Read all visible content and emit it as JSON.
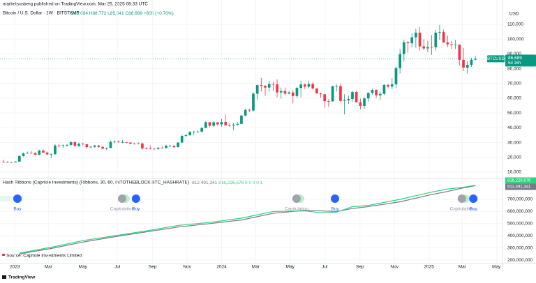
{
  "header": {
    "published": "marketsusberg published on TradingView.com, Mar 25, 2025 08:33 UTC",
    "symbol": "Bitcoin / U.S. Dollar · 1W · BITSTAMP",
    "ohlc": [
      "O86,084",
      "H88,772",
      "L85,541",
      "C86,689",
      "+605 (+0.70%)"
    ],
    "indicator": "Hash Ribbons (Capriole Investments) (Ribbons, 30, 60, INTOTHEBLOCK:BTC_HASHRATE)",
    "indicator_values": [
      "812,491,341",
      "816,226,576",
      "0 0 0 0 1"
    ],
    "source": "Source: Capriole Investments Limited",
    "footer": "TradingView"
  },
  "chart_data": [
    {
      "type": "candlestick",
      "currency": "USD",
      "symbol_tag": "BTCUSD",
      "last_label": "86,689",
      "countdown": "5d 16h",
      "up_color": "#089981",
      "down_color": "#f23645",
      "xlim": [
        -0.9,
        125.5
      ],
      "xticks": [
        {
          "value": 2.86,
          "label": "2023"
        },
        {
          "value": 11.3,
          "label": "Mar"
        },
        {
          "value": 20,
          "label": "May"
        },
        {
          "value": 28.7,
          "label": "Jul"
        },
        {
          "value": 37.6,
          "label": "Sep"
        },
        {
          "value": 46.3,
          "label": "Nov"
        },
        {
          "value": 55,
          "label": "2024"
        },
        {
          "value": 63.6,
          "label": "Mar"
        },
        {
          "value": 72.3,
          "label": "May"
        },
        {
          "value": 81,
          "label": "Jul"
        },
        {
          "value": 89.9,
          "label": "Sep"
        },
        {
          "value": 98.6,
          "label": "Nov"
        },
        {
          "value": 107.3,
          "label": "2025"
        },
        {
          "value": 115.7,
          "label": "Mar"
        },
        {
          "value": 124.3,
          "label": "May"
        }
      ],
      "ylim": [
        6200,
        119400
      ],
      "yticks": [
        {
          "value": 10000,
          "label": "10,000"
        },
        {
          "value": 20000,
          "label": "20,000"
        },
        {
          "value": 30000,
          "label": "30,000"
        },
        {
          "value": 40000,
          "label": "40,000"
        },
        {
          "value": 50000,
          "label": "50,000"
        },
        {
          "value": 60000,
          "label": "60,000"
        },
        {
          "value": 70000,
          "label": "70,000"
        },
        {
          "value": 80000,
          "label": "80,000"
        },
        {
          "value": 90000,
          "label": "90,000"
        },
        {
          "value": 100000,
          "label": "100,000"
        },
        {
          "value": 110000,
          "label": "110,000"
        }
      ],
      "open": [
        17100,
        16800,
        16850,
        16600,
        17100,
        20900,
        22700,
        23000,
        22900,
        21800,
        24600,
        23200,
        22000,
        22100,
        28000,
        27900,
        28200,
        28300,
        30300,
        27800,
        29200,
        28900,
        26900,
        27100,
        28000,
        27100,
        25900,
        26300,
        30500,
        30600,
        30200,
        30300,
        30000,
        29300,
        29100,
        29400,
        26100,
        26000,
        25900,
        25800,
        26500,
        26300,
        27900,
        27900,
        26900,
        30000,
        34500,
        35000,
        37100,
        37400,
        37400,
        39900,
        43800,
        41400,
        43700,
        42300,
        43900,
        41700,
        41600,
        42100,
        42600,
        48300,
        52100,
        51700,
        63100,
        68900,
        68400,
        67200,
        69600,
        69400,
        63900,
        64900,
        63100,
        63900,
        61500,
        67000,
        69300,
        67800,
        69600,
        66600,
        63200,
        62700,
        58000,
        57900,
        68200,
        68200,
        58200,
        58700,
        59500,
        64200,
        57300,
        54800,
        59900,
        63600,
        65600,
        62000,
        63000,
        69000,
        67900,
        69400,
        80400,
        89900,
        97900,
        97200,
        101200,
        104400,
        95100,
        93700,
        94600,
        94500,
        104400,
        104700,
        97700,
        96500,
        96100,
        96300,
        86000,
        80700,
        82600,
        86084
      ],
      "high": [
        18400,
        17300,
        17000,
        17400,
        21300,
        23300,
        23900,
        24200,
        23400,
        25200,
        25300,
        23900,
        22800,
        28900,
        29200,
        28800,
        29200,
        30900,
        30500,
        30000,
        29900,
        29000,
        27700,
        28400,
        28400,
        27400,
        26800,
        31400,
        31400,
        31500,
        31800,
        30400,
        30300,
        29800,
        30000,
        29700,
        26800,
        28100,
        26000,
        27000,
        27500,
        28600,
        28600,
        28000,
        30300,
        35300,
        35900,
        37900,
        37900,
        38400,
        40200,
        44500,
        43500,
        44300,
        43800,
        45900,
        49000,
        43000,
        43200,
        43800,
        48600,
        52800,
        53000,
        64000,
        69200,
        73800,
        68900,
        71800,
        71300,
        72800,
        67200,
        67200,
        65000,
        65500,
        67700,
        71900,
        70000,
        71900,
        71000,
        66900,
        63800,
        63000,
        59400,
        68300,
        69400,
        70000,
        62700,
        61800,
        65000,
        65000,
        59800,
        60700,
        64100,
        66500,
        66000,
        64500,
        69400,
        69500,
        73600,
        81500,
        93400,
        99600,
        98900,
        104000,
        107000,
        108300,
        99900,
        98900,
        102700,
        106400,
        109600,
        106400,
        102500,
        98800,
        99500,
        96500,
        94100,
        85300,
        87400,
        88772
      ],
      "low": [
        16300,
        16300,
        16300,
        16500,
        17000,
        20500,
        22300,
        22500,
        21600,
        21400,
        23100,
        21400,
        19600,
        21900,
        26600,
        26500,
        27200,
        28100,
        27100,
        26900,
        28100,
        26000,
        26300,
        26500,
        26500,
        25400,
        24800,
        26200,
        29600,
        29900,
        29600,
        29500,
        28900,
        28700,
        28800,
        25200,
        25400,
        25300,
        24900,
        25100,
        26000,
        26000,
        27200,
        26500,
        26800,
        29800,
        33900,
        34600,
        35000,
        36700,
        37000,
        39700,
        40200,
        40600,
        41400,
        40800,
        41500,
        40600,
        38500,
        41400,
        42500,
        47700,
        50600,
        50900,
        59100,
        64600,
        61600,
        64500,
        65100,
        60700,
        59600,
        62400,
        62700,
        56500,
        60100,
        60700,
        66300,
        66600,
        66000,
        63400,
        60400,
        53500,
        54300,
        57700,
        64500,
        57200,
        49000,
        56100,
        57800,
        57200,
        52500,
        52600,
        57500,
        62400,
        60100,
        58900,
        62000,
        66600,
        66100,
        66800,
        76800,
        85000,
        90800,
        94500,
        94200,
        92200,
        92500,
        91300,
        89300,
        92200,
        99500,
        97800,
        94700,
        93400,
        93300,
        82200,
        78300,
        76600,
        81300,
        85541
      ],
      "close": [
        16800,
        16850,
        16600,
        17100,
        20900,
        22700,
        23000,
        22900,
        21800,
        24600,
        23200,
        22000,
        22100,
        28000,
        27900,
        28200,
        28300,
        30300,
        27800,
        29200,
        28900,
        26900,
        27100,
        28000,
        27100,
        25900,
        26300,
        30500,
        30600,
        30200,
        30300,
        30000,
        29300,
        29100,
        29400,
        26100,
        26000,
        25900,
        25800,
        26500,
        26300,
        27900,
        27900,
        26900,
        30000,
        34500,
        35000,
        37100,
        37400,
        37400,
        39900,
        43800,
        41400,
        43700,
        42300,
        43900,
        41700,
        41600,
        42100,
        42600,
        48300,
        52100,
        51700,
        63100,
        68900,
        68400,
        67200,
        69600,
        69400,
        63900,
        64900,
        63100,
        63900,
        61500,
        67000,
        69300,
        67800,
        69600,
        66600,
        63200,
        62700,
        58000,
        57900,
        68200,
        68200,
        58200,
        58700,
        59500,
        64200,
        57300,
        54800,
        59900,
        63600,
        65600,
        62000,
        63000,
        69000,
        67900,
        69400,
        80400,
        89900,
        97900,
        97200,
        101200,
        104400,
        95100,
        93700,
        94600,
        94500,
        104400,
        104700,
        97700,
        96500,
        96100,
        96300,
        86000,
        80700,
        82600,
        86084,
        86689
      ]
    },
    {
      "type": "line",
      "x": [
        4,
        12,
        20,
        28,
        36,
        44,
        52,
        60,
        68,
        76,
        80,
        84,
        88,
        92,
        100,
        108,
        112,
        116,
        119
      ],
      "ylim": [
        160000000,
        838000000
      ],
      "yticks": [
        {
          "value": 200000000,
          "label": "200,000,000"
        },
        {
          "value": 300000000,
          "label": "300,000,000"
        },
        {
          "value": 400000000,
          "label": "400,000,000"
        },
        {
          "value": 500000000,
          "label": "500,000,000"
        },
        {
          "value": 600000000,
          "label": "600,000,000"
        },
        {
          "value": 700000000,
          "label": "700,000,000"
        }
      ],
      "series": [
        {
          "color": "#787b86",
          "values": [
            250000000,
            295000000,
            348000000,
            392000000,
            432000000,
            472000000,
            500000000,
            530000000,
            585000000,
            610000000,
            605000000,
            600000000,
            625000000,
            640000000,
            680000000,
            740000000,
            765000000,
            795000000,
            812491341
          ],
          "value_labels": [
            null,
            null,
            null,
            null,
            null,
            null,
            null,
            null,
            null,
            null,
            null,
            null,
            null,
            null,
            null,
            null,
            null,
            null,
            "812,491,341"
          ]
        },
        {
          "color": "#2ed17e",
          "values": [
            257000000,
            305000000,
            360000000,
            400000000,
            440000000,
            485000000,
            510000000,
            545000000,
            600000000,
            605000000,
            590000000,
            595000000,
            640000000,
            650000000,
            700000000,
            760000000,
            785000000,
            800000000,
            816226576
          ],
          "value_labels": [
            null,
            null,
            null,
            null,
            null,
            null,
            null,
            null,
            null,
            null,
            null,
            null,
            null,
            null,
            null,
            null,
            null,
            null,
            "816,226,576"
          ]
        }
      ],
      "signals": [
        {
          "label": "Buy",
          "x": 3.5,
          "color": "#2962ff"
        },
        {
          "label": "Capitulation",
          "x": 29.9,
          "color": "#9fa3ab"
        },
        {
          "label": "Buy",
          "x": 33.4,
          "color": "#2962ff"
        },
        {
          "label": "Capitulation",
          "x": 73.9,
          "color": "#9fa3ab"
        },
        {
          "label": "Buy",
          "x": 83.6,
          "color": "#2962ff"
        },
        {
          "label": "Capitulation",
          "x": 115.6,
          "color": "#9fa3ab"
        },
        {
          "label": "Buy",
          "x": 118.5,
          "color": "#2962ff"
        }
      ]
    }
  ]
}
